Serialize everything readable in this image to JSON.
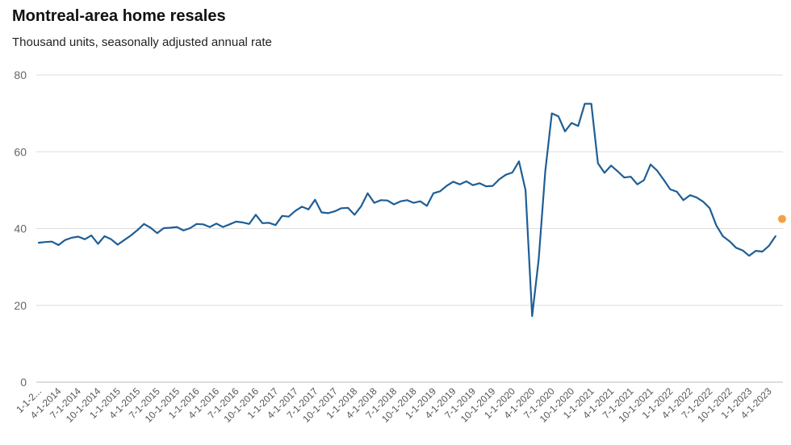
{
  "title": "Montreal-area home resales",
  "subtitle": "Thousand units, seasonally adjusted annual rate",
  "chart_data": {
    "type": "line",
    "title": "Montreal-area home resales",
    "subtitle": "Thousand units, seasonally adjusted annual rate",
    "xlabel": "",
    "ylabel": "",
    "ylim": [
      0,
      80
    ],
    "yticks": [
      0,
      20,
      40,
      60,
      80
    ],
    "grid": true,
    "x_tick_labels": [
      "1-1-2...",
      "4-1-2014",
      "7-1-2014",
      "10-1-2014",
      "1-1-2015",
      "4-1-2015",
      "7-1-2015",
      "10-1-2015",
      "1-1-2016",
      "4-1-2016",
      "7-1-2016",
      "10-1-2016",
      "1-1-2017",
      "4-1-2017",
      "7-1-2017",
      "10-1-2017",
      "1-1-2018",
      "4-1-2018",
      "7-1-2018",
      "10-1-2018",
      "1-1-2019",
      "4-1-2019",
      "7-1-2019",
      "10-1-2019",
      "1-1-2020",
      "4-1-2020",
      "7-1-2020",
      "10-1-2020",
      "1-1-2021",
      "4-1-2021",
      "7-1-2021",
      "10-1-2021",
      "1-1-2022",
      "4-1-2022",
      "7-1-2022",
      "10-1-2022",
      "1-1-2023",
      "4-1-2023"
    ],
    "series": [
      {
        "color": "#1f5e96",
        "start": "2014-01",
        "values": [
          36.3,
          36.5,
          36.6,
          35.7,
          37.0,
          37.6,
          37.9,
          37.2,
          38.2,
          36.0,
          38.0,
          37.2,
          35.8,
          37.0,
          38.2,
          39.6,
          41.2,
          40.2,
          38.8,
          40.1,
          40.2,
          40.4,
          39.5,
          40.1,
          41.2,
          41.1,
          40.4,
          41.3,
          40.4,
          41.1,
          41.8,
          41.6,
          41.2,
          43.6,
          41.4,
          41.5,
          40.9,
          43.3,
          43.1,
          44.6,
          45.7,
          45.0,
          47.5,
          44.2,
          44.0,
          44.5,
          45.3,
          45.4,
          43.6,
          45.8,
          49.2,
          46.7,
          47.4,
          47.3,
          46.3,
          47.1,
          47.4,
          46.7,
          47.1,
          45.9,
          49.2,
          49.7,
          51.1,
          52.2,
          51.5,
          52.3,
          51.3,
          51.8,
          51.0,
          51.1,
          52.8,
          54.0,
          54.6,
          57.5,
          50.0,
          17.2,
          32.0,
          55.0,
          70.0,
          69.2,
          65.3,
          67.5,
          66.7,
          72.5,
          72.5,
          57.0,
          54.5,
          56.4,
          54.9,
          53.3,
          53.5,
          51.5,
          52.6,
          56.7,
          55.1,
          52.7,
          50.2,
          49.6,
          47.4,
          48.7,
          48.1,
          47.0,
          45.3,
          40.8,
          38.0,
          36.7,
          35.0,
          34.3,
          32.9,
          34.2,
          34.0,
          35.5,
          38.0
        ]
      },
      {
        "color": "#f5a142",
        "start": "2023-06",
        "values": [
          42.5
        ]
      }
    ]
  }
}
